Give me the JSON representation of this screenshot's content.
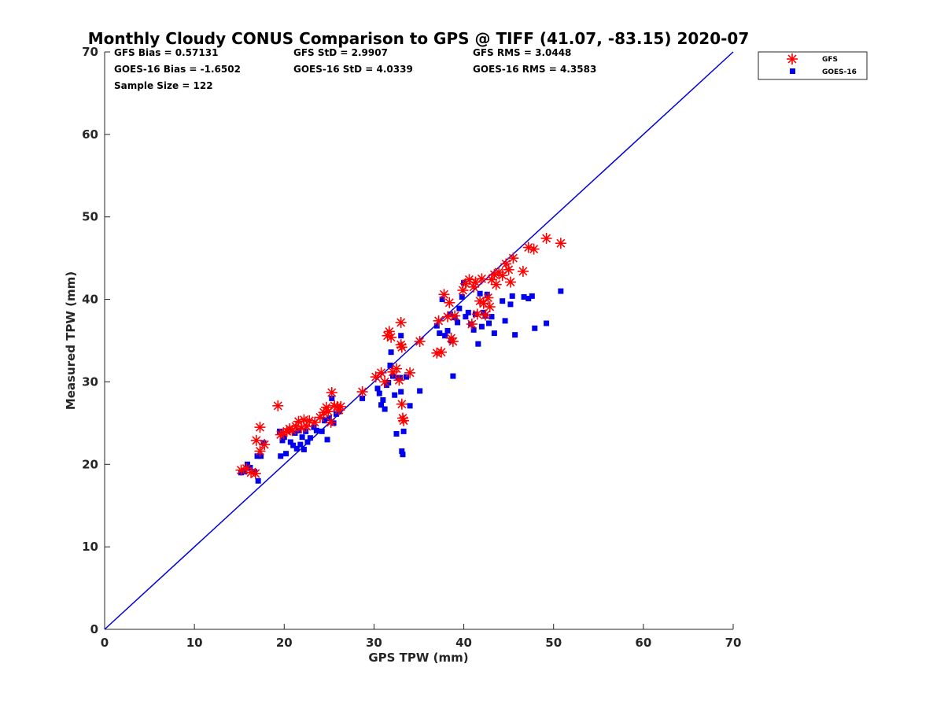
{
  "chart_data": {
    "type": "scatter",
    "title": "Monthly Cloudy CONUS Comparison to GPS @ TIFF (41.07, -83.15) 2020-07",
    "xlabel": "GPS TPW (mm)",
    "ylabel": "Measured TPW (mm)",
    "xlim": [
      0,
      70
    ],
    "ylim": [
      0,
      70
    ],
    "xticks": [
      0,
      10,
      20,
      30,
      40,
      50,
      60,
      70
    ],
    "yticks": [
      0,
      10,
      20,
      30,
      40,
      50,
      60,
      70
    ],
    "grid": false,
    "legend_position": "outside-top-right",
    "stats": [
      "GFS Bias = 0.57131",
      "GFS StD = 2.9907",
      "GFS RMS = 3.0448",
      "GOES-16 Bias = -1.6502",
      "GOES-16 StD = 4.0339",
      "GOES-16 RMS = 4.3583",
      "Sample Size = 122"
    ],
    "reference_line": {
      "x": [
        0,
        70
      ],
      "y": [
        0,
        70
      ],
      "color": "#0000dd"
    },
    "series": [
      {
        "name": "GFS",
        "marker": "asterisk",
        "color": "#ff0000",
        "points": [
          [
            15.2,
            19.3
          ],
          [
            15.8,
            19.5
          ],
          [
            16.3,
            19.0
          ],
          [
            16.8,
            18.9
          ],
          [
            16.9,
            22.9
          ],
          [
            17.3,
            21.6
          ],
          [
            17.3,
            24.5
          ],
          [
            17.8,
            22.4
          ],
          [
            19.3,
            27.1
          ],
          [
            19.6,
            23.6
          ],
          [
            19.9,
            23.8
          ],
          [
            20.3,
            24.0
          ],
          [
            20.6,
            24.3
          ],
          [
            20.9,
            24.1
          ],
          [
            21.3,
            24.6
          ],
          [
            21.6,
            25.2
          ],
          [
            21.9,
            24.4
          ],
          [
            22.2,
            25.4
          ],
          [
            22.5,
            24.6
          ],
          [
            22.8,
            25.3
          ],
          [
            23.4,
            25.1
          ],
          [
            24.0,
            25.7
          ],
          [
            24.4,
            26.3
          ],
          [
            24.7,
            26.9
          ],
          [
            24.9,
            26.4
          ],
          [
            25.2,
            25.1
          ],
          [
            25.3,
            28.7
          ],
          [
            25.6,
            27.1
          ],
          [
            25.9,
            27.0
          ],
          [
            26.1,
            26.6
          ],
          [
            26.3,
            27.0
          ],
          [
            28.7,
            28.8
          ],
          [
            30.2,
            30.6
          ],
          [
            30.8,
            31.1
          ],
          [
            31.2,
            30.0
          ],
          [
            31.5,
            35.6
          ],
          [
            31.7,
            36.1
          ],
          [
            31.9,
            35.4
          ],
          [
            32.1,
            31.2
          ],
          [
            32.5,
            31.6
          ],
          [
            32.8,
            30.2
          ],
          [
            33.0,
            34.5
          ],
          [
            33.1,
            34.2
          ],
          [
            33.0,
            37.2
          ],
          [
            33.1,
            27.3
          ],
          [
            33.2,
            25.6
          ],
          [
            33.3,
            25.3
          ],
          [
            34.0,
            31.1
          ],
          [
            35.1,
            34.9
          ],
          [
            37.0,
            33.5
          ],
          [
            37.2,
            37.4
          ],
          [
            37.5,
            33.6
          ],
          [
            37.8,
            40.6
          ],
          [
            38.2,
            37.9
          ],
          [
            38.4,
            39.6
          ],
          [
            38.6,
            35.3
          ],
          [
            38.8,
            34.9
          ],
          [
            39.0,
            38.0
          ],
          [
            39.9,
            41.1
          ],
          [
            40.2,
            41.9
          ],
          [
            40.6,
            42.4
          ],
          [
            40.9,
            37.0
          ],
          [
            41.1,
            41.5
          ],
          [
            41.3,
            42.1
          ],
          [
            41.5,
            38.2
          ],
          [
            41.8,
            39.8
          ],
          [
            42.0,
            42.5
          ],
          [
            42.2,
            39.5
          ],
          [
            42.4,
            38.1
          ],
          [
            42.7,
            40.2
          ],
          [
            42.9,
            39.1
          ],
          [
            43.1,
            42.4
          ],
          [
            43.4,
            43.0
          ],
          [
            43.6,
            41.8
          ],
          [
            43.9,
            43.3
          ],
          [
            44.3,
            42.9
          ],
          [
            44.7,
            44.3
          ],
          [
            45.0,
            43.6
          ],
          [
            45.2,
            42.1
          ],
          [
            45.5,
            45.0
          ],
          [
            46.6,
            43.4
          ],
          [
            47.2,
            46.3
          ],
          [
            47.8,
            46.1
          ],
          [
            49.2,
            47.4
          ],
          [
            50.8,
            46.8
          ]
        ]
      },
      {
        "name": "GOES-16",
        "marker": "square",
        "color": "#0000ee",
        "points": [
          [
            15.2,
            19.0
          ],
          [
            15.6,
            19.1
          ],
          [
            15.9,
            20.0
          ],
          [
            16.2,
            19.6
          ],
          [
            16.7,
            19.1
          ],
          [
            17.0,
            21.0
          ],
          [
            17.1,
            18.0
          ],
          [
            17.4,
            21.0
          ],
          [
            17.7,
            22.6
          ],
          [
            19.5,
            24.0
          ],
          [
            19.6,
            21.0
          ],
          [
            19.8,
            22.9
          ],
          [
            20.0,
            23.3
          ],
          [
            20.2,
            21.3
          ],
          [
            20.5,
            24.1
          ],
          [
            20.7,
            22.7
          ],
          [
            21.0,
            22.3
          ],
          [
            21.2,
            23.8
          ],
          [
            21.4,
            21.9
          ],
          [
            21.6,
            24.1
          ],
          [
            21.8,
            22.4
          ],
          [
            22.0,
            23.3
          ],
          [
            22.2,
            21.8
          ],
          [
            22.4,
            24.0
          ],
          [
            22.6,
            22.7
          ],
          [
            22.9,
            23.2
          ],
          [
            23.3,
            24.5
          ],
          [
            23.6,
            24.1
          ],
          [
            24.2,
            24.0
          ],
          [
            24.5,
            25.3
          ],
          [
            24.8,
            23.0
          ],
          [
            25.0,
            25.6
          ],
          [
            25.3,
            28.0
          ],
          [
            25.5,
            25.0
          ],
          [
            25.8,
            26.1
          ],
          [
            26.1,
            26.4
          ],
          [
            28.7,
            28.0
          ],
          [
            30.4,
            29.2
          ],
          [
            30.6,
            28.6
          ],
          [
            30.8,
            27.2
          ],
          [
            31.0,
            27.8
          ],
          [
            31.2,
            26.7
          ],
          [
            31.4,
            29.6
          ],
          [
            31.6,
            29.9
          ],
          [
            31.8,
            32.0
          ],
          [
            31.9,
            33.6
          ],
          [
            32.1,
            30.7
          ],
          [
            32.3,
            28.4
          ],
          [
            32.5,
            23.7
          ],
          [
            32.7,
            30.5
          ],
          [
            32.9,
            30.5
          ],
          [
            33.0,
            28.8
          ],
          [
            33.0,
            35.6
          ],
          [
            33.1,
            21.6
          ],
          [
            33.2,
            21.2
          ],
          [
            33.3,
            24.0
          ],
          [
            33.6,
            30.6
          ],
          [
            34.0,
            27.1
          ],
          [
            35.1,
            28.9
          ],
          [
            37.0,
            36.8
          ],
          [
            37.3,
            35.9
          ],
          [
            37.6,
            40.0
          ],
          [
            37.9,
            35.6
          ],
          [
            38.2,
            36.2
          ],
          [
            38.5,
            38.2
          ],
          [
            38.6,
            35.0
          ],
          [
            38.8,
            30.7
          ],
          [
            39.0,
            37.8
          ],
          [
            39.3,
            37.2
          ],
          [
            39.5,
            38.9
          ],
          [
            39.8,
            40.3
          ],
          [
            40.0,
            42.0
          ],
          [
            40.2,
            37.9
          ],
          [
            40.5,
            38.4
          ],
          [
            40.8,
            37.0
          ],
          [
            41.1,
            36.3
          ],
          [
            41.3,
            38.2
          ],
          [
            41.6,
            34.6
          ],
          [
            41.8,
            40.7
          ],
          [
            42.0,
            36.7
          ],
          [
            42.2,
            38.4
          ],
          [
            42.4,
            38.0
          ],
          [
            42.6,
            40.6
          ],
          [
            42.8,
            37.1
          ],
          [
            43.1,
            37.9
          ],
          [
            43.4,
            35.9
          ],
          [
            44.3,
            39.8
          ],
          [
            44.6,
            37.4
          ],
          [
            45.2,
            39.4
          ],
          [
            45.4,
            40.4
          ],
          [
            45.7,
            35.7
          ],
          [
            46.7,
            40.3
          ],
          [
            47.2,
            40.1
          ],
          [
            47.6,
            40.4
          ],
          [
            47.9,
            36.5
          ],
          [
            49.2,
            37.1
          ],
          [
            50.8,
            41.0
          ]
        ]
      }
    ]
  }
}
